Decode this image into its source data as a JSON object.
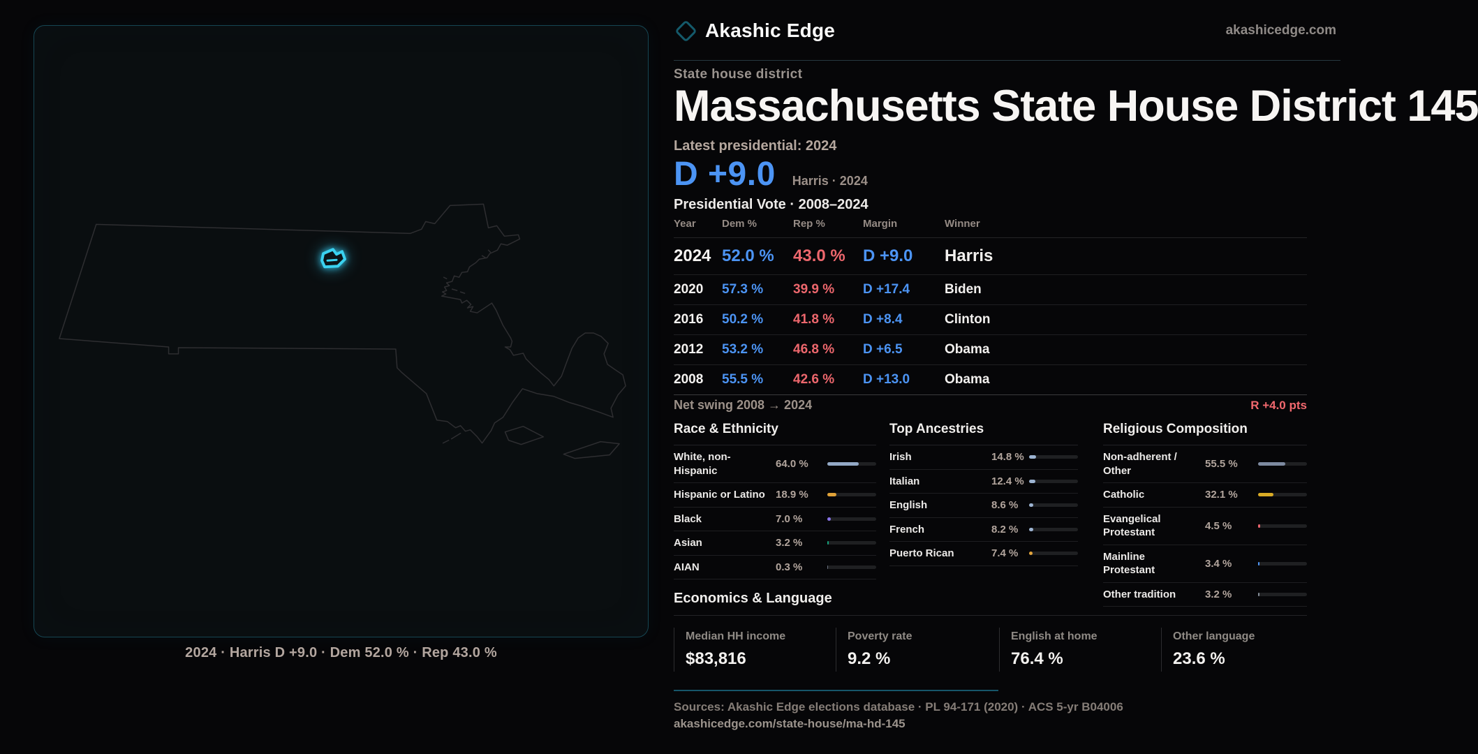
{
  "brand": {
    "name": "Akashic Edge",
    "site": "akashicedge.com",
    "logo_color": "#145a6b"
  },
  "header": {
    "kicker": "State house district",
    "title": "Massachusetts State House District 145",
    "latest_label": "Latest presidential: 2024",
    "margin_big": "D +9.0",
    "margin_note": "Harris · 2024"
  },
  "pres_table": {
    "caption": "Presidential Vote · 2008–2024",
    "columns": [
      "Year",
      "Dem %",
      "Rep %",
      "Margin",
      "Winner"
    ],
    "rows": [
      {
        "year": "2024",
        "dem": "52.0 %",
        "rep": "43.0 %",
        "margin": "D +9.0",
        "winner": "Harris",
        "emphasis": true
      },
      {
        "year": "2020",
        "dem": "57.3 %",
        "rep": "39.9 %",
        "margin": "D +17.4",
        "winner": "Biden",
        "emphasis": false
      },
      {
        "year": "2016",
        "dem": "50.2 %",
        "rep": "41.8 %",
        "margin": "D +8.4",
        "winner": "Clinton",
        "emphasis": false
      },
      {
        "year": "2012",
        "dem": "53.2 %",
        "rep": "46.8 %",
        "margin": "D +6.5",
        "winner": "Obama",
        "emphasis": false
      },
      {
        "year": "2008",
        "dem": "55.5 %",
        "rep": "42.6 %",
        "margin": "D +13.0",
        "winner": "Obama",
        "emphasis": false
      }
    ],
    "net_swing_label": "Net swing 2008 → 2024",
    "net_swing_value": "R +4.0 pts"
  },
  "sections": [
    {
      "title": "Race & Ethnicity",
      "rows": [
        {
          "label": "White, non-Hispanic",
          "value": "64.0 %",
          "pct": 64.0,
          "color": "#93a9c6"
        },
        {
          "label": "Hispanic or Latino",
          "value": "18.9 %",
          "pct": 18.9,
          "color": "#e0a238"
        },
        {
          "label": "Black",
          "value": "7.0 %",
          "pct": 7.0,
          "color": "#8873e8"
        },
        {
          "label": "Asian",
          "value": "3.2 %",
          "pct": 3.2,
          "color": "#14a07a"
        },
        {
          "label": "AIAN",
          "value": "0.3 %",
          "pct": 0.3,
          "color": "#6b7280"
        }
      ]
    },
    {
      "title": "Top Ancestries",
      "rows": [
        {
          "label": "Irish",
          "value": "14.8 %",
          "pct": 14.8,
          "color": "#9db4d2"
        },
        {
          "label": "Italian",
          "value": "12.4 %",
          "pct": 12.4,
          "color": "#9db4d2"
        },
        {
          "label": "English",
          "value": "8.6 %",
          "pct": 8.6,
          "color": "#9db4d2"
        },
        {
          "label": "French",
          "value": "8.2 %",
          "pct": 8.2,
          "color": "#9db4d2"
        },
        {
          "label": "Puerto Rican",
          "value": "7.4 %",
          "pct": 7.4,
          "color": "#e3a53c"
        }
      ]
    },
    {
      "title": "Religious Composition",
      "rows": [
        {
          "label": "Non-adherent / Other",
          "value": "55.5 %",
          "pct": 55.5,
          "color": "#7d8aa0"
        },
        {
          "label": "Catholic",
          "value": "32.1 %",
          "pct": 32.1,
          "color": "#d9ab25"
        },
        {
          "label": "Evangelical Protestant",
          "value": "4.5 %",
          "pct": 4.5,
          "color": "#e8636c"
        },
        {
          "label": "Mainline Protestant",
          "value": "3.4 %",
          "pct": 3.4,
          "color": "#4f96f6"
        },
        {
          "label": "Other tradition",
          "value": "3.2 %",
          "pct": 3.2,
          "color": "#868e99"
        }
      ]
    }
  ],
  "economics": {
    "title": "Economics & Language",
    "stats": [
      {
        "label": "Median HH income",
        "value": "$83,816"
      },
      {
        "label": "Poverty rate",
        "value": "9.2 %"
      },
      {
        "label": "English at home",
        "value": "76.4 %"
      },
      {
        "label": "Other language",
        "value": "23.6 %"
      }
    ]
  },
  "sources": {
    "line1": "Sources: Akashic Edge elections database · PL 94-171 (2020) · ACS 5-yr B04006",
    "line2": "akashicedge.com/state-house/ma-hd-145"
  },
  "map": {
    "caption": "2024 · Harris D +9.0 · Dem 52.0 % · Rep 43.0 %",
    "outline_color": "#2e2e31",
    "district_color": "#3ad2f0",
    "panel_border_color": "#164653"
  }
}
